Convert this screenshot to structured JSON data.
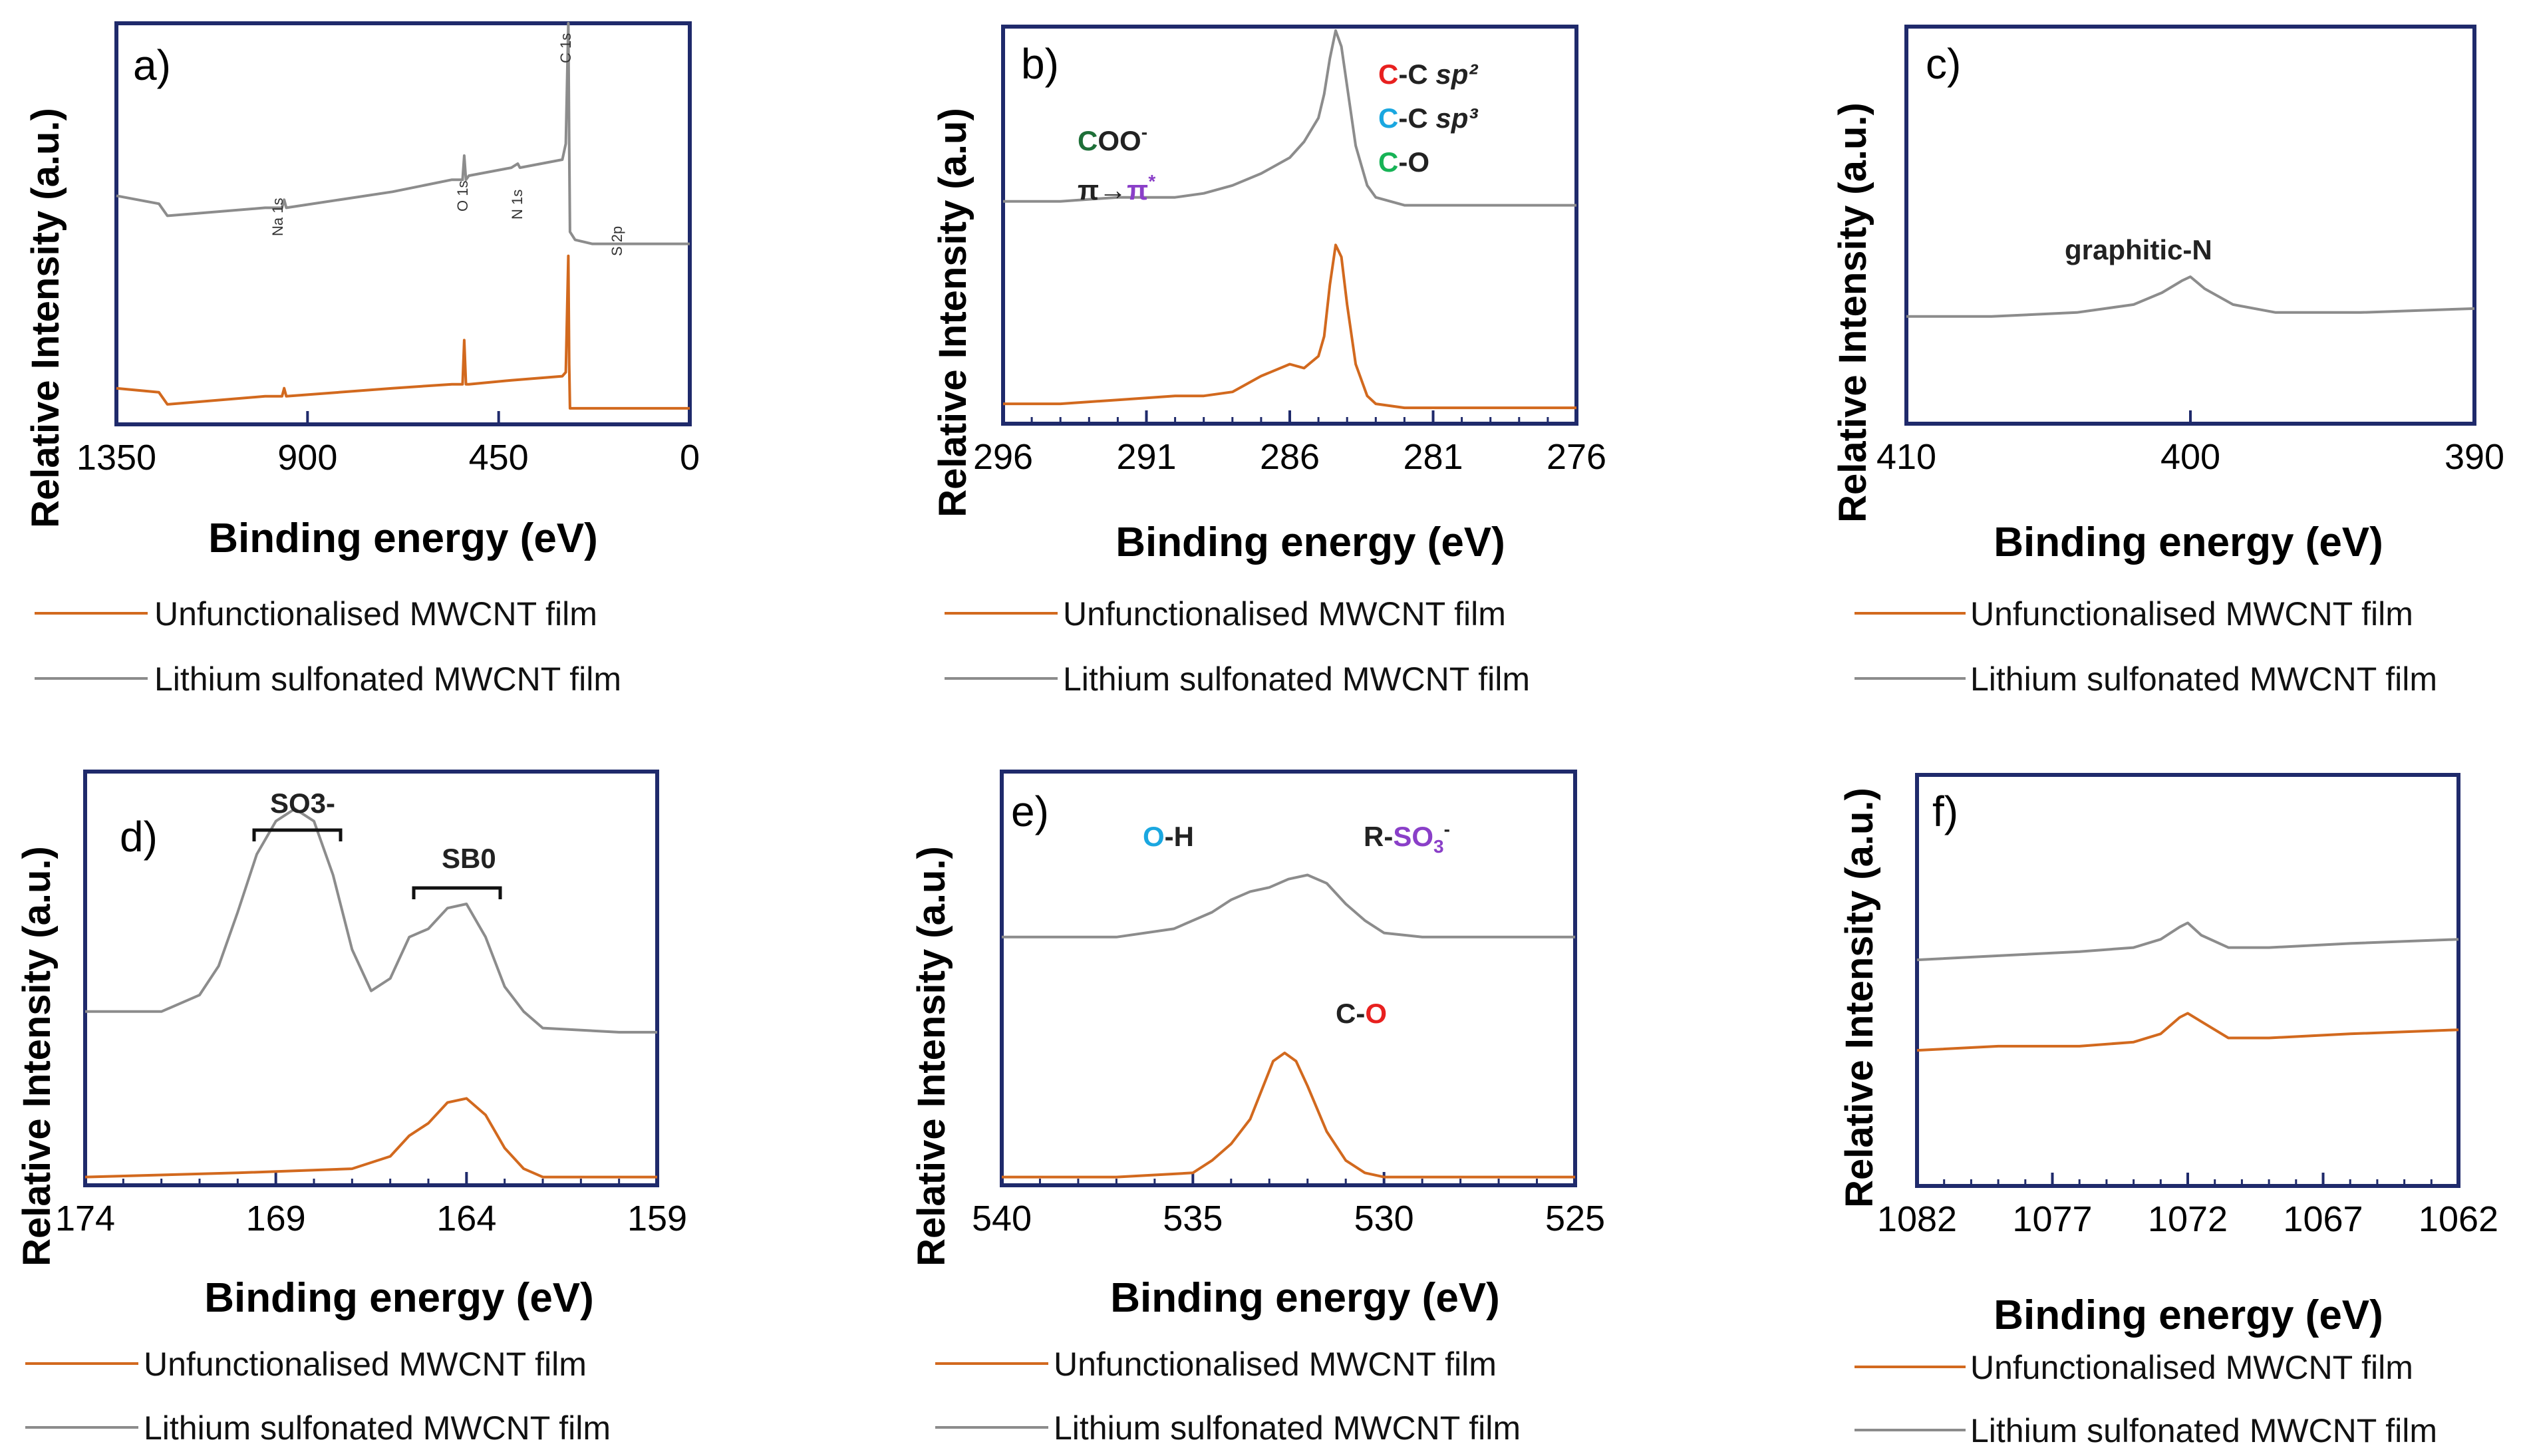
{
  "colors": {
    "unfunctionalised": "#d2691e",
    "lithium": "#8c8c8c",
    "frame": "#1f2a6b",
    "red": "#e8201f",
    "blue": "#1aa7e0",
    "green": "#17b356",
    "purple": "#8a3fc8",
    "darkgreen": "#1e6f38",
    "black": "#222222"
  },
  "chart_data": [
    {
      "id": "a",
      "type": "line",
      "panel_label": "a)",
      "ylabel": "Relative Intensity (a.u.)",
      "xlabel": "Binding energy (eV)",
      "xlim": [
        1350,
        0
      ],
      "xticks": [
        1350,
        900,
        450,
        0
      ],
      "xtick_labels": [
        "1350",
        "900",
        "450",
        "0"
      ],
      "legend": [
        "Unfunctionalised MWCNT film",
        "Lithium sulfonated MWCNT film"
      ],
      "annotations": [
        "C 1s",
        "O 1s",
        "N 1s",
        "Na 1s",
        "S 2p"
      ],
      "series": [
        {
          "name": "Lithium sulfonated MWCNT film",
          "x": [
            1350,
            1250,
            1230,
            1000,
            960,
            955,
            950,
            700,
            560,
            535,
            531,
            527,
            520,
            420,
            405,
            400,
            300,
            292,
            286,
            284,
            282,
            270,
            230,
            150,
            0
          ],
          "y": [
            0.57,
            0.55,
            0.52,
            0.54,
            0.54,
            0.56,
            0.54,
            0.58,
            0.61,
            0.61,
            0.67,
            0.61,
            0.62,
            0.64,
            0.65,
            0.64,
            0.66,
            0.7,
            1.0,
            0.7,
            0.48,
            0.46,
            0.45,
            0.45,
            0.45
          ]
        },
        {
          "name": "Unfunctionalised MWCNT film",
          "x": [
            1350,
            1250,
            1230,
            1000,
            960,
            955,
            950,
            700,
            560,
            535,
            531,
            527,
            520,
            420,
            300,
            292,
            286,
            284,
            282,
            270,
            200,
            0
          ],
          "y": [
            0.09,
            0.08,
            0.05,
            0.07,
            0.07,
            0.09,
            0.07,
            0.09,
            0.1,
            0.1,
            0.21,
            0.1,
            0.1,
            0.11,
            0.12,
            0.13,
            0.42,
            0.15,
            0.04,
            0.04,
            0.04,
            0.04
          ]
        }
      ]
    },
    {
      "id": "b",
      "type": "line",
      "panel_label": "b)",
      "ylabel": "Relative Intensity (a.u)",
      "xlabel": "Binding energy (eV)",
      "xlim": [
        296,
        276
      ],
      "xticks": [
        296,
        291,
        286,
        281,
        276
      ],
      "xtick_labels": [
        "296",
        "291",
        "286",
        "281",
        "276"
      ],
      "legend": [
        "Unfunctionalised MWCNT film",
        "Lithium sulfonated MWCNT film"
      ],
      "annotations": [
        "C-C sp2",
        "C-C sp3",
        "C-O",
        "COO-",
        "π→π*"
      ],
      "series": [
        {
          "name": "Lithium sulfonated MWCNT film",
          "x": [
            296,
            294,
            292,
            290,
            289,
            288,
            287,
            286,
            285.5,
            285,
            284.8,
            284.6,
            284.4,
            284.2,
            284,
            283.7,
            283.3,
            283,
            282,
            281,
            280,
            276
          ],
          "y": [
            0.56,
            0.56,
            0.57,
            0.57,
            0.58,
            0.6,
            0.63,
            0.67,
            0.71,
            0.77,
            0.83,
            0.92,
            0.99,
            0.95,
            0.85,
            0.7,
            0.6,
            0.57,
            0.55,
            0.55,
            0.55,
            0.55
          ]
        },
        {
          "name": "Unfunctionalised MWCNT film",
          "x": [
            296,
            294,
            292,
            290,
            289,
            288,
            287,
            286,
            285.5,
            285,
            284.8,
            284.6,
            284.4,
            284.2,
            284,
            283.7,
            283.3,
            283,
            282,
            281,
            280,
            276
          ],
          "y": [
            0.05,
            0.05,
            0.06,
            0.07,
            0.07,
            0.08,
            0.12,
            0.15,
            0.14,
            0.17,
            0.22,
            0.35,
            0.45,
            0.42,
            0.3,
            0.15,
            0.07,
            0.05,
            0.04,
            0.04,
            0.04,
            0.04
          ]
        }
      ]
    },
    {
      "id": "c",
      "type": "line",
      "panel_label": "c)",
      "ylabel": "Relative Intensity (a.u.)",
      "xlabel": "Binding energy (eV)",
      "xlim": [
        410,
        390
      ],
      "xticks": [
        410,
        400,
        390
      ],
      "xtick_labels": [
        "410",
        "400",
        "390"
      ],
      "legend": [
        "Unfunctionalised MWCNT film",
        "Lithium sulfonated MWCNT film"
      ],
      "annotations": [
        "graphitic-N"
      ],
      "series": [
        {
          "name": "Lithium sulfonated MWCNT film",
          "x": [
            410,
            407,
            404,
            402,
            401,
            400.3,
            400,
            399.5,
            398.5,
            397,
            394,
            390
          ],
          "y": [
            0.27,
            0.27,
            0.28,
            0.3,
            0.33,
            0.36,
            0.37,
            0.34,
            0.3,
            0.28,
            0.28,
            0.29
          ]
        }
      ]
    },
    {
      "id": "d",
      "type": "line",
      "panel_label": "d)",
      "ylabel": "Relative Intensity (a.u.)",
      "xlabel": "Binding energy (eV)",
      "xlim": [
        174,
        159
      ],
      "xticks": [
        174,
        169,
        164,
        159
      ],
      "xtick_labels": [
        "174",
        "169",
        "164",
        "159"
      ],
      "legend": [
        "Unfunctionalised MWCNT film",
        "Lithium sulfonated MWCNT film"
      ],
      "annotations": [
        "SO3-",
        "SB0"
      ],
      "series": [
        {
          "name": "Lithium sulfonated MWCNT film",
          "x": [
            174,
            172,
            171,
            170.5,
            170,
            169.5,
            169,
            168.5,
            168,
            167.5,
            167,
            166.5,
            166,
            165.5,
            165,
            164.5,
            164,
            163.5,
            163,
            162.5,
            162,
            160,
            159
          ],
          "y": [
            0.42,
            0.42,
            0.46,
            0.53,
            0.66,
            0.8,
            0.88,
            0.91,
            0.88,
            0.75,
            0.57,
            0.47,
            0.5,
            0.6,
            0.62,
            0.67,
            0.68,
            0.6,
            0.48,
            0.42,
            0.38,
            0.37,
            0.37
          ]
        },
        {
          "name": "Unfunctionalised MWCNT film",
          "x": [
            174,
            170,
            167,
            166,
            165.5,
            165,
            164.5,
            164,
            163.5,
            163,
            162.5,
            162,
            160,
            159
          ],
          "y": [
            0.02,
            0.03,
            0.04,
            0.07,
            0.12,
            0.15,
            0.2,
            0.21,
            0.17,
            0.09,
            0.04,
            0.02,
            0.02,
            0.02
          ]
        }
      ]
    },
    {
      "id": "e",
      "type": "line",
      "panel_label": "e)",
      "ylabel": "Relative Intensity (a.u.)",
      "xlabel": "Binding energy (eV)",
      "xlim": [
        540,
        525
      ],
      "xticks": [
        540,
        535,
        530,
        525
      ],
      "xtick_labels": [
        "540",
        "535",
        "530",
        "525"
      ],
      "legend": [
        "Unfunctionalised MWCNT film",
        "Lithium sulfonated MWCNT film"
      ],
      "annotations": [
        "O-H",
        "R-SO3-",
        "C-O"
      ],
      "series": [
        {
          "name": "Lithium sulfonated MWCNT film",
          "x": [
            540,
            537,
            535.5,
            534.5,
            534,
            533.5,
            533,
            532.5,
            532,
            531.5,
            531,
            530.5,
            530,
            529,
            527.5,
            525
          ],
          "y": [
            0.6,
            0.6,
            0.62,
            0.66,
            0.69,
            0.71,
            0.72,
            0.74,
            0.75,
            0.73,
            0.68,
            0.64,
            0.61,
            0.6,
            0.6,
            0.6
          ]
        },
        {
          "name": "Unfunctionalised MWCNT film",
          "x": [
            540,
            537,
            535,
            534.5,
            534,
            533.5,
            533.2,
            532.9,
            532.6,
            532.3,
            532,
            531.5,
            531,
            530.5,
            530,
            527.5,
            525
          ],
          "y": [
            0.02,
            0.02,
            0.03,
            0.06,
            0.1,
            0.16,
            0.23,
            0.3,
            0.32,
            0.3,
            0.24,
            0.13,
            0.06,
            0.03,
            0.02,
            0.02,
            0.02
          ]
        }
      ]
    },
    {
      "id": "f",
      "type": "line",
      "panel_label": "f)",
      "ylabel": "Relative Intensity (a.u.)",
      "xlabel": "Binding energy (eV)",
      "xlim": [
        1082,
        1062
      ],
      "xticks": [
        1082,
        1077,
        1072,
        1067,
        1062
      ],
      "xtick_labels": [
        "1082",
        "1077",
        "1072",
        "1067",
        "1062"
      ],
      "legend": [
        "Unfunctionalised MWCNT film",
        "Lithium sulfonated MWCNT film"
      ],
      "series": [
        {
          "name": "Lithium sulfonated MWCNT film",
          "x": [
            1082,
            1079,
            1076,
            1074,
            1073,
            1072.3,
            1072,
            1071.5,
            1070.5,
            1069,
            1066,
            1062
          ],
          "y": [
            0.55,
            0.56,
            0.57,
            0.58,
            0.6,
            0.63,
            0.64,
            0.61,
            0.58,
            0.58,
            0.59,
            0.6
          ]
        },
        {
          "name": "Unfunctionalised MWCNT film",
          "x": [
            1082,
            1079,
            1076,
            1074,
            1073,
            1072.3,
            1072,
            1071.5,
            1070.5,
            1069,
            1066,
            1062
          ],
          "y": [
            0.33,
            0.34,
            0.34,
            0.35,
            0.37,
            0.41,
            0.42,
            0.4,
            0.36,
            0.36,
            0.37,
            0.38
          ]
        }
      ]
    }
  ]
}
